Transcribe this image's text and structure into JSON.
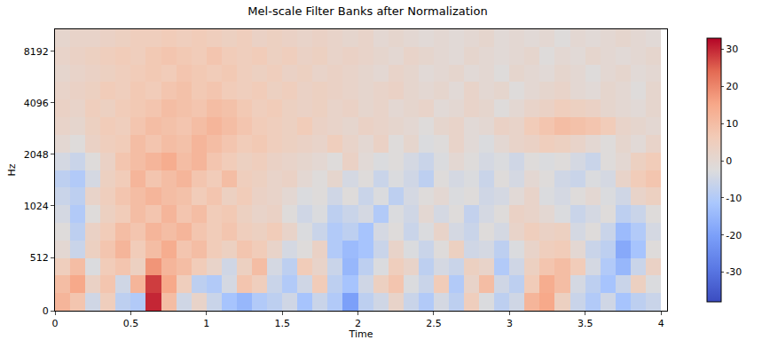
{
  "chart_data": {
    "type": "heatmap",
    "title": "Mel-scale Filter Banks after Normalization",
    "x_label": "Time",
    "y_label": "Hz",
    "x": [
      0.05,
      0.15,
      0.25,
      0.35,
      0.45,
      0.55,
      0.65,
      0.75,
      0.85,
      0.95,
      1.05,
      1.15,
      1.25,
      1.35,
      1.45,
      1.55,
      1.65,
      1.75,
      1.85,
      1.95,
      2.05,
      2.15,
      2.25,
      2.35,
      2.45,
      2.55,
      2.65,
      2.75,
      2.85,
      2.95,
      3.05,
      3.15,
      3.25,
      3.35,
      3.45,
      3.55,
      3.65,
      3.75,
      3.85,
      3.95
    ],
    "y": [
      85,
      256,
      427,
      598,
      768,
      939,
      1164,
      1474,
      1869,
      2367,
      3000,
      3800,
      4814,
      6100,
      7727,
      9793
    ],
    "z": [
      [
        12,
        8,
        -5,
        5,
        -8,
        -10,
        30,
        10,
        -5,
        2,
        -6,
        -12,
        -15,
        -10,
        -8,
        -5,
        -12,
        -6,
        -10,
        -20,
        -8,
        -5,
        2,
        -6,
        -10,
        -4,
        -8,
        5,
        -3,
        -8,
        -5,
        12,
        15,
        4,
        -6,
        -10,
        -5,
        -12,
        -8,
        -6
      ],
      [
        10,
        15,
        3,
        8,
        -5,
        12,
        28,
        15,
        5,
        -8,
        -10,
        -4,
        8,
        5,
        -6,
        -10,
        -5,
        6,
        -8,
        -12,
        -5,
        4,
        8,
        -3,
        -6,
        6,
        -10,
        2,
        10,
        -5,
        -8,
        6,
        14,
        10,
        -4,
        -8,
        -12,
        -6,
        4,
        -3
      ],
      [
        5,
        10,
        -3,
        6,
        8,
        4,
        18,
        12,
        10,
        6,
        2,
        -5,
        4,
        10,
        -4,
        -8,
        6,
        2,
        -6,
        -15,
        -8,
        -3,
        5,
        2,
        -8,
        -4,
        -6,
        4,
        2,
        -10,
        -5,
        4,
        8,
        10,
        6,
        -4,
        -10,
        -15,
        -6,
        3
      ],
      [
        0,
        -6,
        4,
        8,
        12,
        6,
        10,
        14,
        8,
        10,
        6,
        4,
        8,
        6,
        2,
        -4,
        -2,
        3,
        -10,
        -14,
        -12,
        -6,
        2,
        -3,
        -6,
        -2,
        4,
        -5,
        -4,
        -8,
        -3,
        2,
        5,
        6,
        0,
        -6,
        -8,
        -18,
        -12,
        -2
      ],
      [
        -2,
        -8,
        3,
        6,
        10,
        8,
        12,
        10,
        12,
        8,
        6,
        8,
        5,
        4,
        6,
        2,
        -3,
        -6,
        -10,
        -8,
        -12,
        -4,
        -2,
        -6,
        -3,
        2,
        -4,
        -6,
        -2,
        -4,
        2,
        5,
        3,
        4,
        -4,
        -2,
        -6,
        -14,
        -10,
        -4
      ],
      [
        -4,
        -10,
        -2,
        4,
        6,
        10,
        8,
        12,
        8,
        10,
        6,
        7,
        4,
        2,
        3,
        -2,
        -5,
        -3,
        -8,
        -6,
        -4,
        -10,
        -3,
        -5,
        0,
        -4,
        -2,
        -7,
        -4,
        -2,
        3,
        2,
        0,
        -3,
        -6,
        -4,
        -2,
        -8,
        -6,
        -2
      ],
      [
        -6,
        -8,
        2,
        5,
        8,
        10,
        12,
        10,
        9,
        6,
        8,
        4,
        6,
        3,
        2,
        0,
        -3,
        -2,
        -5,
        -2,
        -6,
        -3,
        -8,
        -4,
        -2,
        0,
        -3,
        -2,
        -5,
        -4,
        -1,
        2,
        -3,
        -4,
        -2,
        0,
        -3,
        -5,
        2,
        4
      ],
      [
        -8,
        -10,
        -4,
        4,
        6,
        12,
        8,
        10,
        12,
        8,
        6,
        10,
        5,
        4,
        2,
        3,
        0,
        -2,
        1,
        -4,
        -2,
        -6,
        -3,
        -5,
        -8,
        -2,
        -4,
        -3,
        -6,
        -2,
        -4,
        0,
        -2,
        -5,
        -6,
        -3,
        -4,
        2,
        6,
        8
      ],
      [
        -4,
        -6,
        -2,
        3,
        8,
        10,
        12,
        14,
        10,
        12,
        8,
        6,
        4,
        5,
        3,
        2,
        1,
        0,
        -2,
        3,
        -1,
        -3,
        -2,
        -4,
        -6,
        -3,
        0,
        -2,
        -4,
        -3,
        -5,
        -2,
        -3,
        -2,
        -4,
        -6,
        -2,
        0,
        4,
        6
      ],
      [
        0,
        -2,
        3,
        5,
        6,
        10,
        8,
        10,
        9,
        12,
        10,
        8,
        6,
        7,
        5,
        4,
        3,
        2,
        5,
        2,
        0,
        3,
        -2,
        1,
        -3,
        -2,
        2,
        -1,
        -3,
        0,
        2,
        3,
        5,
        4,
        2,
        0,
        -2,
        1,
        -1,
        2
      ],
      [
        2,
        1,
        4,
        6,
        5,
        8,
        10,
        9,
        8,
        10,
        12,
        10,
        8,
        6,
        5,
        4,
        6,
        3,
        2,
        1,
        3,
        2,
        1,
        0,
        -2,
        1,
        2,
        -1,
        0,
        3,
        2,
        6,
        8,
        10,
        9,
        8,
        6,
        2,
        1,
        0
      ],
      [
        3,
        2,
        5,
        4,
        6,
        7,
        8,
        10,
        9,
        8,
        10,
        9,
        7,
        5,
        6,
        4,
        3,
        4,
        2,
        3,
        1,
        2,
        0,
        1,
        2,
        -1,
        0,
        2,
        1,
        -2,
        0,
        2,
        3,
        5,
        4,
        3,
        1,
        0,
        -1,
        1
      ],
      [
        2,
        3,
        4,
        6,
        5,
        7,
        6,
        8,
        9,
        7,
        8,
        6,
        5,
        6,
        4,
        5,
        3,
        4,
        3,
        2,
        1,
        2,
        3,
        1,
        0,
        1,
        -1,
        2,
        0,
        1,
        -2,
        0,
        1,
        2,
        0,
        -1,
        1,
        0,
        -2,
        1
      ],
      [
        1,
        2,
        3,
        4,
        5,
        6,
        7,
        6,
        8,
        7,
        6,
        7,
        5,
        4,
        5,
        3,
        4,
        2,
        3,
        2,
        1,
        0,
        2,
        1,
        -1,
        0,
        1,
        -1,
        0,
        -2,
        1,
        0,
        -1,
        1,
        0,
        -2,
        0,
        1,
        -1,
        0
      ],
      [
        2,
        3,
        4,
        5,
        6,
        5,
        7,
        8,
        7,
        6,
        8,
        6,
        5,
        6,
        4,
        5,
        3,
        4,
        2,
        3,
        2,
        1,
        0,
        2,
        1,
        0,
        -1,
        1,
        0,
        -1,
        0,
        1,
        -2,
        0,
        -1,
        1,
        0,
        -1,
        0,
        1
      ],
      [
        1,
        2,
        2,
        3,
        4,
        5,
        5,
        6,
        5,
        6,
        5,
        4,
        5,
        3,
        4,
        3,
        2,
        3,
        2,
        1,
        2,
        0,
        1,
        0,
        -1,
        0,
        -1,
        0,
        1,
        -1,
        0,
        -1,
        0,
        -2,
        0,
        -1,
        0,
        1,
        0,
        -1
      ]
    ],
    "xlim": [
      0,
      4.04
    ],
    "xticks": [
      0,
      0.5,
      1,
      1.5,
      2,
      2.5,
      3,
      3.5,
      4
    ],
    "ylim": [
      0,
      11025
    ],
    "yticks": [
      0,
      512,
      1024,
      2048,
      4096,
      8192
    ],
    "zlim": [
      -38,
      33
    ],
    "zticks": [
      -30,
      -20,
      -10,
      0,
      10,
      20,
      30
    ]
  }
}
